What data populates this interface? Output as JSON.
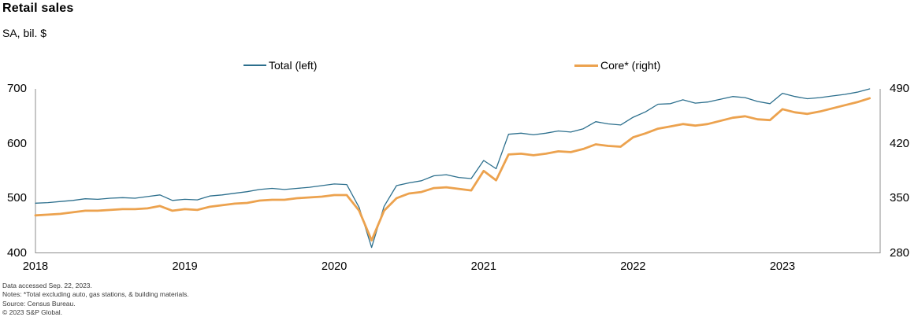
{
  "header": {
    "title": "Retail sales",
    "subtitle": "SA, bil. $"
  },
  "legend": {
    "items": [
      {
        "label": "Total (left)",
        "color": "#2C6F8D"
      },
      {
        "label": "Core* (right)",
        "color": "#ECA24E"
      }
    ]
  },
  "chart_data": {
    "type": "line",
    "title": "Retail sales",
    "subtitle": "SA, bil. $",
    "x_frequency": "monthly",
    "x_range": [
      "2018-01",
      "2023-08"
    ],
    "x_tick_labels": [
      "2018",
      "2019",
      "2020",
      "2021",
      "2022",
      "2023"
    ],
    "grid": false,
    "legend_position": "top",
    "left_axis": {
      "min": 400,
      "max": 700,
      "ticks": [
        700,
        600,
        500,
        400
      ]
    },
    "right_axis": {
      "min": 280,
      "max": 490,
      "ticks": [
        490,
        420,
        350,
        280
      ]
    },
    "series": [
      {
        "name": "Total (left)",
        "axis": "left",
        "color": "#2C6F8D",
        "width": 1.3,
        "values": [
          491,
          492,
          494,
          496,
          499,
          498,
          500,
          501,
          500,
          503,
          506,
          496,
          498,
          497,
          504,
          506,
          509,
          512,
          516,
          518,
          516,
          518,
          520,
          523,
          526,
          525,
          483,
          410,
          485,
          523,
          528,
          532,
          541,
          543,
          538,
          536,
          569,
          554,
          617,
          619,
          616,
          619,
          623,
          621,
          627,
          640,
          636,
          634,
          648,
          658,
          672,
          673,
          680,
          674,
          676,
          681,
          686,
          684,
          677,
          673,
          692,
          686,
          682,
          684,
          687,
          690,
          694,
          700
        ]
      },
      {
        "name": "Core* (right)",
        "axis": "right",
        "color": "#ECA24E",
        "width": 2.8,
        "values": [
          328,
          329,
          330,
          332,
          334,
          334,
          335,
          336,
          336,
          337,
          340,
          334,
          336,
          335,
          339,
          341,
          343,
          344,
          347,
          348,
          348,
          350,
          351,
          352,
          354,
          354,
          334,
          296,
          334,
          350,
          356,
          358,
          363,
          364,
          362,
          360,
          385,
          373,
          406,
          407,
          405,
          407,
          410,
          409,
          413,
          419,
          417,
          416,
          428,
          433,
          439,
          442,
          445,
          443,
          445,
          449,
          453,
          455,
          451,
          450,
          464,
          460,
          458,
          461,
          465,
          469,
          473,
          478
        ]
      }
    ]
  },
  "footnotes": [
    "Data accessed Sep. 22, 2023.",
    "Notes: *Total excluding auto, gas stations, & building materials.",
    "Source: Census Bureau.",
    "© 2023 S&P Global."
  ]
}
